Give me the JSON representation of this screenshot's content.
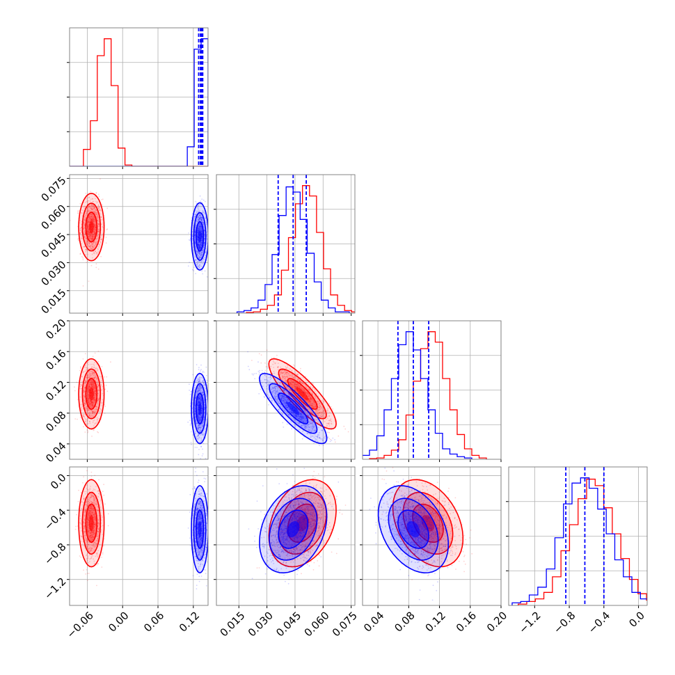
{
  "chart_data": {
    "type": "corner",
    "parameters": 4,
    "colors": {
      "series_a": "#ff0000",
      "series_b": "#0000ff",
      "grid": "#b0b0b0"
    },
    "grid": true,
    "series": [
      {
        "color": "#ff0000",
        "mean": [
          -0.053,
          0.049,
          0.105,
          -0.55
        ],
        "std": [
          0.009,
          0.0075,
          0.019,
          0.21
        ]
      },
      {
        "color": "#0000ff",
        "mean": [
          0.131,
          0.044,
          0.086,
          -0.62
        ],
        "std": [
          0.006,
          0.0075,
          0.019,
          0.21
        ]
      }
    ],
    "correlations": [
      {
        "pair": [
          2,
          1
        ],
        "rho": -0.85
      },
      {
        "pair": [
          3,
          1
        ],
        "rho": 0.3
      },
      {
        "pair": [
          3,
          2
        ],
        "rho": -0.35
      }
    ],
    "quantile_lines": [
      [
        0.129,
        0.132,
        0.134,
        0.136
      ],
      [
        0.036,
        0.044,
        0.051
      ],
      [
        0.066,
        0.086,
        0.106
      ],
      [
        -0.84,
        -0.62,
        -0.4
      ]
    ],
    "ranges": [
      [
        -0.09,
        0.145
      ],
      [
        0.003,
        0.077
      ],
      [
        0.02,
        0.2
      ],
      [
        -1.5,
        0.1
      ]
    ],
    "ticks": [
      {
        "values": [
          -0.06,
          0.0,
          0.06,
          0.12
        ],
        "labels": [
          "−0.06",
          "0.00",
          "0.06",
          "0.12"
        ]
      },
      {
        "values": [
          0.015,
          0.03,
          0.045,
          0.06,
          0.075
        ],
        "labels": [
          "0.015",
          "0.030",
          "0.045",
          "0.060",
          "0.075"
        ]
      },
      {
        "values": [
          0.04,
          0.08,
          0.12,
          0.16,
          0.2
        ],
        "labels": [
          "0.04",
          "0.08",
          "0.12",
          "0.16",
          "0.20"
        ]
      },
      {
        "values": [
          -1.2,
          -0.8,
          -0.4,
          0.0
        ],
        "labels": [
          "−1.2",
          "−0.8",
          "−0.4",
          "0.0"
        ]
      }
    ],
    "histograms": {
      "series_a": {
        "p0": [
          0,
          0,
          0.13,
          0.35,
          0.85,
          0.98,
          0.62,
          0.14,
          0.01,
          0,
          0,
          0,
          0,
          0,
          0,
          0,
          0,
          0,
          0,
          0
        ],
        "p1": [
          0.005,
          0.01,
          0.03,
          0.06,
          0.14,
          0.33,
          0.58,
          0.84,
          0.98,
          0.9,
          0.62,
          0.34,
          0.14,
          0.06,
          0.02,
          0.01
        ],
        "p2": [
          0.005,
          0.01,
          0.03,
          0.07,
          0.15,
          0.34,
          0.6,
          0.85,
          0.98,
          0.9,
          0.62,
          0.38,
          0.19,
          0.08,
          0.03,
          0.01
        ],
        "p3": [
          0.01,
          0.03,
          0.05,
          0.1,
          0.22,
          0.42,
          0.62,
          0.82,
          0.97,
          0.92,
          0.75,
          0.55,
          0.36,
          0.2,
          0.09,
          0.04,
          0.02
        ]
      },
      "series_b": {
        "p0": [
          0,
          0,
          0,
          0,
          0,
          0,
          0,
          0,
          0,
          0,
          0,
          0,
          0,
          0,
          0,
          0,
          0,
          0.15,
          0.9,
          0.98
        ],
        "p1": [
          0.01,
          0.02,
          0.04,
          0.1,
          0.22,
          0.45,
          0.75,
          0.97,
          0.93,
          0.72,
          0.46,
          0.24,
          0.1,
          0.04,
          0.01,
          0.01
        ],
        "p2": [
          0.01,
          0.03,
          0.07,
          0.18,
          0.38,
          0.62,
          0.88,
          0.98,
          0.84,
          0.62,
          0.38,
          0.2,
          0.08,
          0.04,
          0.02,
          0.01
        ],
        "p3": [
          0.02,
          0.03,
          0.08,
          0.14,
          0.28,
          0.52,
          0.78,
          0.94,
          0.98,
          0.9,
          0.74,
          0.55,
          0.35,
          0.22,
          0.1,
          0.05,
          0.02
        ]
      }
    }
  }
}
